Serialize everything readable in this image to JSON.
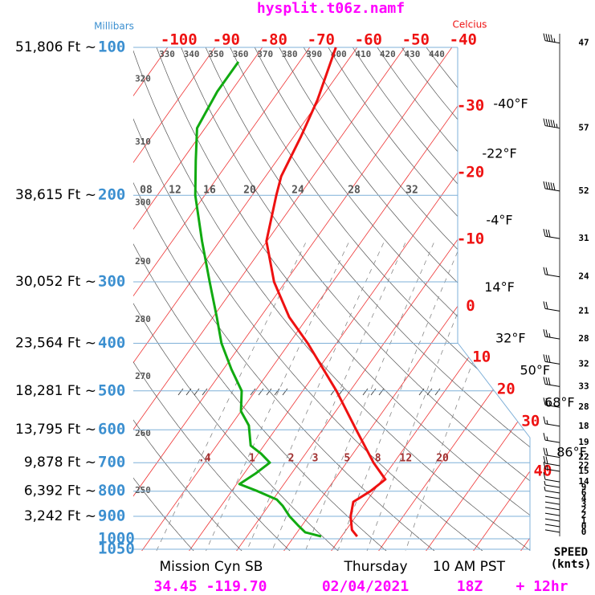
{
  "chart_data": {
    "type": "skewt",
    "title": "hysplit.t06z.namf",
    "y_label": "Millibars",
    "x_label": "Celcius",
    "ylim": [
      1050,
      100
    ],
    "yticks": [
      100,
      200,
      300,
      400,
      500,
      600,
      700,
      800,
      900,
      1000,
      1050
    ],
    "altitude_labels": [
      "51,806 Ft ~",
      "38,615 Ft ~",
      "30,052 Ft ~",
      "23,564 Ft ~",
      "18,281 Ft ~",
      "13,795 Ft ~",
      "9,878 Ft ~",
      "6,392 Ft ~",
      "3,242 Ft ~"
    ],
    "xticks": [
      -100,
      -90,
      -80,
      -70,
      -60,
      -50,
      -40,
      -30,
      -20,
      -10,
      0,
      10,
      20,
      30,
      40
    ],
    "fahrenheit_labels": [
      "-40°F",
      "-22°F",
      "-4°F",
      "14°F",
      "32°F",
      "50°F",
      "68°F",
      "86°F"
    ],
    "theta_ticks": [
      250,
      260,
      270,
      280,
      290,
      300,
      310,
      320,
      330,
      340,
      350,
      360,
      370,
      380,
      390,
      400,
      410,
      420,
      430,
      440
    ],
    "moist_labels": [
      "08",
      "12",
      "16",
      "20",
      "24",
      "28",
      "32"
    ],
    "mixing_ratio_ticks": [
      {
        "value": 0.4,
        "label": ".4"
      },
      1,
      2,
      3,
      5,
      8,
      12,
      20
    ],
    "series": [
      {
        "color": "#ee1111",
        "pressure": [
          100,
          128,
          152,
          183,
          200,
          248,
          300,
          354,
          400,
          500,
          600,
          700,
          757,
          800,
          841,
          900,
          959,
          989
        ],
        "values": [
          -64.5,
          -60.5,
          -58.5,
          -56.7,
          -54.9,
          -50.1,
          -42.4,
          -33.9,
          -26.1,
          -12.9,
          -2.9,
          5.7,
          10.7,
          9.3,
          7.3,
          8.9,
          11.2,
          13.3
        ]
      },
      {
        "color": "#11aa11",
        "pressure": [
          107,
          123,
          146,
          170,
          200,
          248,
          300,
          354,
          400,
          452,
          500,
          550,
          588,
          646,
          671,
          700,
          737,
          774,
          800,
          832,
          857,
          900,
          942,
          970,
          989
        ],
        "values": [
          -82.9,
          -82.9,
          -81.7,
          -77.1,
          -72.0,
          -63.7,
          -56.0,
          -49.2,
          -44.3,
          -38.3,
          -32.9,
          -30.0,
          -26.2,
          -22.8,
          -19.4,
          -16.2,
          -17.6,
          -19.4,
          -14.5,
          -9.2,
          -7.0,
          -4.0,
          -0.6,
          1.7,
          5.7
        ]
      }
    ],
    "wind": {
      "pressure": [
        98,
        146,
        196,
        245,
        293,
        344,
        392,
        441,
        490,
        540,
        590,
        637,
        683,
        710,
        729,
        766,
        786,
        807,
        829,
        851,
        873,
        897,
        921,
        945,
        970
      ],
      "values": [
        47,
        57,
        52,
        31,
        24,
        21,
        28,
        32,
        33,
        28,
        18,
        19,
        22,
        22,
        15,
        14,
        9,
        6,
        4,
        3,
        2,
        2,
        1,
        0,
        0
      ],
      "label": "SPEED",
      "unit": "(knts)"
    },
    "footer": {
      "station": "Mission Cyn SB",
      "day": "Thursday",
      "time": "10 AM PST",
      "location": "34.45 -119.70",
      "date": "02/04/2021",
      "run": "18Z",
      "forecast": "+ 12hr"
    }
  }
}
